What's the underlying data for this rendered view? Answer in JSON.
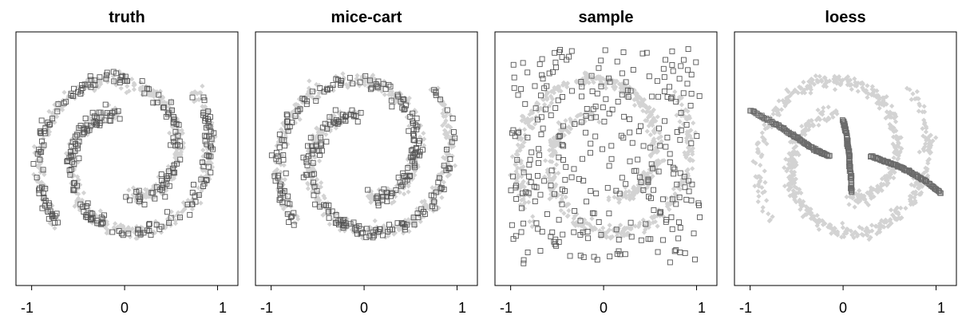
{
  "colors": {
    "background": "#ffffff",
    "observed_marker": "#d3d3d3",
    "imputed_marker": "#555555",
    "loess_marker": "#6b6b6b",
    "frame": "#000000"
  },
  "chart_data": [
    {
      "type": "scatter",
      "title": "truth",
      "xlim": [
        -1.1,
        1.15
      ],
      "ylim": [
        -1.2,
        1.15
      ],
      "x_ticks": [
        -1,
        0,
        1
      ],
      "x_tick_labels": [
        "-1",
        "0",
        "1"
      ],
      "grid": false,
      "series": [
        {
          "marker": "filled-diamond",
          "role": "observed",
          "pattern": "two-spirals",
          "count": 700
        },
        {
          "marker": "open-square",
          "role": "imputed",
          "pattern": "two-spirals",
          "count": 300
        }
      ]
    },
    {
      "type": "scatter",
      "title": "mice-cart",
      "xlim": [
        -1.1,
        1.15
      ],
      "ylim": [
        -1.2,
        1.15
      ],
      "x_ticks": [
        -1,
        0,
        1
      ],
      "x_tick_labels": [
        "-1",
        "0",
        "1"
      ],
      "grid": false,
      "series": [
        {
          "marker": "filled-diamond",
          "role": "observed",
          "pattern": "two-spirals",
          "count": 700
        },
        {
          "marker": "open-square",
          "role": "imputed",
          "pattern": "two-spirals",
          "count": 300
        }
      ]
    },
    {
      "type": "scatter",
      "title": "sample",
      "xlim": [
        -1.1,
        1.15
      ],
      "ylim": [
        -1.2,
        1.15
      ],
      "x_ticks": [
        -1,
        0,
        1
      ],
      "x_tick_labels": [
        "-1",
        "0",
        "1"
      ],
      "grid": false,
      "series": [
        {
          "marker": "filled-diamond",
          "role": "observed",
          "pattern": "two-spirals",
          "count": 700
        },
        {
          "marker": "open-square",
          "role": "imputed",
          "pattern": "uniform-random",
          "count": 300
        }
      ]
    },
    {
      "type": "scatter",
      "title": "loess",
      "xlim": [
        -1.1,
        1.15
      ],
      "ylim": [
        -1.2,
        1.15
      ],
      "x_ticks": [
        -1,
        0,
        1
      ],
      "x_tick_labels": [
        "-1",
        "0",
        "1"
      ],
      "grid": false,
      "series": [
        {
          "marker": "filled-diamond",
          "role": "observed",
          "pattern": "two-spirals",
          "count": 700
        },
        {
          "marker": "open-square",
          "role": "imputed",
          "pattern": "smooth-curves",
          "count": 300,
          "curves": [
            {
              "x": [
                -1.0,
                -0.7,
                -0.5,
                -0.3,
                -0.15
              ],
              "y": [
                0.45,
                0.3,
                0.18,
                0.06,
                0.0
              ]
            },
            {
              "x": [
                0.0,
                0.04,
                0.06,
                0.08,
                0.09
              ],
              "y": [
                0.35,
                0.2,
                0.05,
                -0.15,
                -0.35
              ]
            },
            {
              "x": [
                0.3,
                0.45,
                0.6,
                0.75,
                0.9,
                1.05
              ],
              "y": [
                0.0,
                -0.05,
                -0.1,
                -0.17,
                -0.25,
                -0.36
              ]
            }
          ]
        }
      ]
    }
  ]
}
